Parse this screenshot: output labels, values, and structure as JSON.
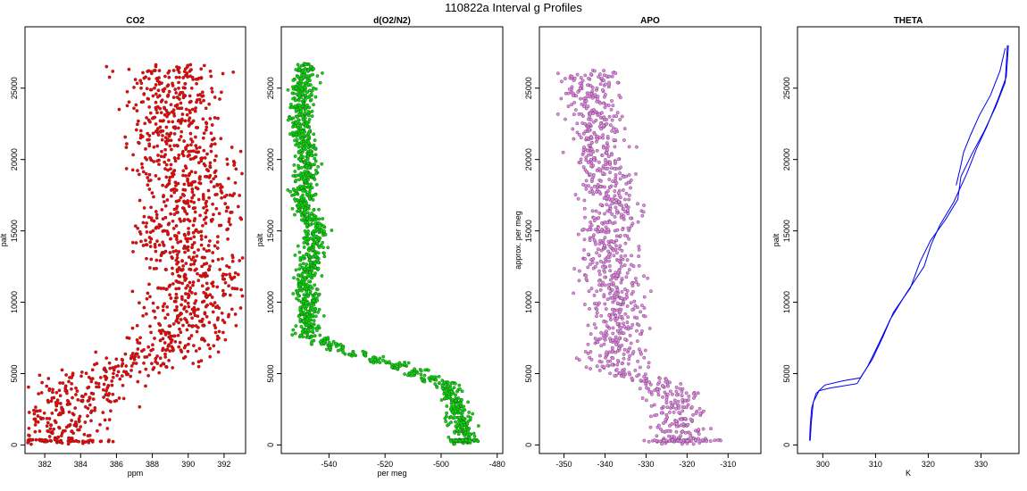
{
  "page_title": "110822a   Interval g Profiles",
  "chart_data": [
    {
      "type": "scatter",
      "title": "CO2",
      "xlabel": "ppm",
      "ylabel": "palt",
      "xlim": [
        380.9,
        393.2
      ],
      "ylim": [
        -600,
        29300
      ],
      "xticks": [
        382,
        384,
        386,
        388,
        390,
        392
      ],
      "yticks": [
        0,
        5000,
        10000,
        15000,
        20000,
        25000
      ],
      "color": "#ff0000",
      "profile": [
        [
          382.5,
          300
        ],
        [
          382.8,
          1500
        ],
        [
          383.2,
          2500
        ],
        [
          383.8,
          3600
        ],
        [
          384.8,
          4600
        ],
        [
          386.2,
          5200
        ],
        [
          388,
          6000
        ],
        [
          389.4,
          7400
        ],
        [
          390,
          8600
        ],
        [
          390.2,
          10000
        ],
        [
          390.4,
          11500
        ],
        [
          389.6,
          13000
        ],
        [
          389.2,
          14600
        ],
        [
          390.1,
          16000
        ],
        [
          390.4,
          17500
        ],
        [
          390.2,
          19000
        ],
        [
          389.5,
          20500
        ],
        [
          389.2,
          22000
        ],
        [
          389.1,
          23600
        ],
        [
          389.1,
          25000
        ],
        [
          389.2,
          26400
        ]
      ],
      "spread": 1.4,
      "points_per_level": 22
    },
    {
      "type": "scatter",
      "title": "d(O2/N2)",
      "xlabel": "per meg",
      "ylabel": "palt",
      "xlim": [
        -557,
        -478
      ],
      "ylim": [
        -600,
        29300
      ],
      "xticks": [
        -540,
        -520,
        -500,
        -480
      ],
      "yticks": [
        0,
        5000,
        10000,
        15000,
        20000,
        25000
      ],
      "color": "#00dd00",
      "profile": [
        [
          -492,
          300
        ],
        [
          -493,
          1500
        ],
        [
          -495,
          3000
        ],
        [
          -499,
          4400
        ],
        [
          -510,
          5200
        ],
        [
          -522,
          6000
        ],
        [
          -536,
          6700
        ],
        [
          -547,
          7600
        ],
        [
          -548,
          9000
        ],
        [
          -548,
          10500
        ],
        [
          -548,
          12000
        ],
        [
          -546,
          13500
        ],
        [
          -544,
          15000
        ],
        [
          -549,
          16500
        ],
        [
          -549,
          18000
        ],
        [
          -548,
          19500
        ],
        [
          -548,
          21000
        ],
        [
          -550,
          22500
        ],
        [
          -550,
          24000
        ],
        [
          -549,
          25500
        ],
        [
          -548,
          26500
        ]
      ],
      "spread": 2.2,
      "points_per_level": 22
    },
    {
      "type": "scatter",
      "title": "APO",
      "xlabel": "",
      "ylabel": "approx. per meg",
      "xlim": [
        -356,
        -302
      ],
      "ylim": [
        -600,
        29300
      ],
      "xticks": [
        -350,
        -340,
        -330,
        -320,
        -310
      ],
      "yticks": [
        0,
        5000,
        10000,
        15000,
        20000,
        25000
      ],
      "color": "#ee82ee",
      "profile": [
        [
          -321,
          300
        ],
        [
          -322,
          1500
        ],
        [
          -323,
          3000
        ],
        [
          -326,
          4300
        ],
        [
          -336,
          5000
        ],
        [
          -338,
          6500
        ],
        [
          -337,
          8000
        ],
        [
          -337,
          9500
        ],
        [
          -338,
          11000
        ],
        [
          -339,
          12500
        ],
        [
          -339,
          14000
        ],
        [
          -339,
          15500
        ],
        [
          -338,
          17000
        ],
        [
          -339,
          18500
        ],
        [
          -341,
          20000
        ],
        [
          -342,
          21500
        ],
        [
          -342,
          23000
        ],
        [
          -343,
          24500
        ],
        [
          -344,
          26000
        ]
      ],
      "spread": 3.5,
      "points_per_level": 18
    },
    {
      "type": "line",
      "title": "THETA",
      "xlabel": "K",
      "ylabel": "palt",
      "xlim": [
        295.2,
        337.2
      ],
      "ylim": [
        -600,
        29300
      ],
      "xticks": [
        300,
        310,
        320,
        330
      ],
      "yticks": [
        0,
        5000,
        10000,
        15000,
        20000,
        25000
      ],
      "color": "#0000ee",
      "series": [
        {
          "x": [
            297.6,
            297.8,
            298.2,
            299.3,
            301.5,
            303.3,
            306.5,
            308.5,
            310.5,
            312.8,
            315.8,
            319.2,
            320.5,
            322.2,
            324.8,
            327.3,
            329.2,
            331.1,
            333.2,
            334.8,
            335.2
          ],
          "y": [
            300,
            1500,
            3000,
            3800,
            4000,
            4100,
            4300,
            5500,
            7000,
            8800,
            10600,
            12500,
            14000,
            15400,
            17000,
            19000,
            20800,
            22300,
            24200,
            25800,
            28000
          ]
        },
        {
          "x": [
            297.5,
            297.6,
            297.9,
            298.7,
            300.4,
            303.9,
            307.1,
            309.4,
            311.3,
            313.4,
            316.6,
            318.4,
            320.4,
            323.3,
            325.6,
            326.2,
            328.3,
            330.5,
            332.8,
            334.6,
            335.0
          ],
          "y": [
            300,
            1300,
            2600,
            3600,
            4200,
            4500,
            4700,
            6000,
            7500,
            9300,
            11000,
            12800,
            14300,
            15800,
            17200,
            18800,
            20400,
            21900,
            23700,
            25400,
            28000
          ]
        },
        {
          "x": [
            325.3,
            326.0,
            326.7,
            328.0,
            329.7,
            331.8,
            333.6,
            334.6
          ],
          "y": [
            18200,
            19300,
            20500,
            21700,
            23100,
            24500,
            26200,
            27800
          ]
        }
      ]
    }
  ]
}
